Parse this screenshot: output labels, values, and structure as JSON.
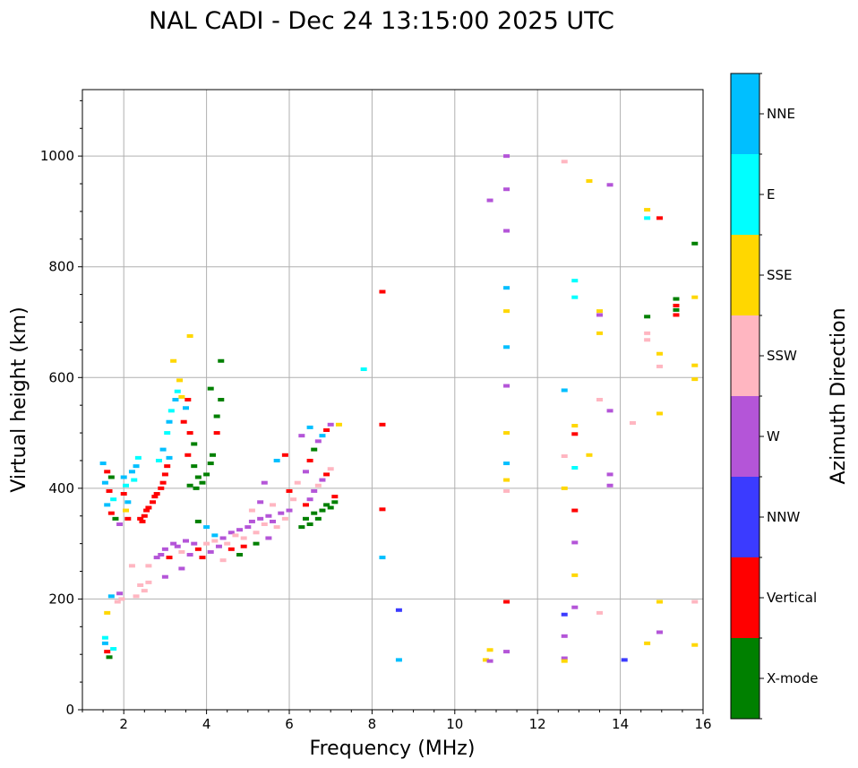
{
  "chart_data": {
    "type": "scatter",
    "title": "NAL CADI - Dec 24 13:15:00 2025 UTC",
    "xlabel": "Frequency (MHz)",
    "ylabel": "Virtual height (km)",
    "xlim": [
      1,
      16
    ],
    "ylim": [
      0,
      1120
    ],
    "xticks": [
      2,
      4,
      6,
      8,
      10,
      12,
      14,
      16
    ],
    "yticks": [
      0,
      200,
      400,
      600,
      800,
      1000
    ],
    "grid": true,
    "colorbar": {
      "label": "Azimuth Direction",
      "categories": [
        "X-mode",
        "Vertical",
        "NNW",
        "W",
        "SSW",
        "SSE",
        "E",
        "NNE"
      ],
      "colors": {
        "X-mode": "#008000",
        "Vertical": "#ff0000",
        "NNW": "#3b3bff",
        "W": "#b455d8",
        "SSW": "#ffb6c1",
        "SSE": "#ffd700",
        "E": "#00ffff",
        "NNE": "#00bfff"
      }
    },
    "points": [
      {
        "x": 1.55,
        "y": 120,
        "c": "NNE"
      },
      {
        "x": 1.55,
        "y": 130,
        "c": "E"
      },
      {
        "x": 1.6,
        "y": 105,
        "c": "Vertical"
      },
      {
        "x": 1.65,
        "y": 95,
        "c": "X-mode"
      },
      {
        "x": 1.75,
        "y": 110,
        "c": "E"
      },
      {
        "x": 1.6,
        "y": 175,
        "c": "SSE"
      },
      {
        "x": 1.7,
        "y": 205,
        "c": "NNE"
      },
      {
        "x": 1.85,
        "y": 195,
        "c": "SSW"
      },
      {
        "x": 1.9,
        "y": 210,
        "c": "W"
      },
      {
        "x": 1.95,
        "y": 200,
        "c": "SSW"
      },
      {
        "x": 1.5,
        "y": 445,
        "c": "NNE"
      },
      {
        "x": 1.6,
        "y": 430,
        "c": "Vertical"
      },
      {
        "x": 1.7,
        "y": 420,
        "c": "X-mode"
      },
      {
        "x": 1.55,
        "y": 410,
        "c": "NNE"
      },
      {
        "x": 1.65,
        "y": 395,
        "c": "Vertical"
      },
      {
        "x": 1.75,
        "y": 380,
        "c": "E"
      },
      {
        "x": 1.6,
        "y": 370,
        "c": "NNE"
      },
      {
        "x": 1.7,
        "y": 355,
        "c": "Vertical"
      },
      {
        "x": 1.8,
        "y": 345,
        "c": "X-mode"
      },
      {
        "x": 1.9,
        "y": 335,
        "c": "W"
      },
      {
        "x": 2.0,
        "y": 420,
        "c": "NNE"
      },
      {
        "x": 2.05,
        "y": 405,
        "c": "E"
      },
      {
        "x": 2.0,
        "y": 390,
        "c": "Vertical"
      },
      {
        "x": 2.1,
        "y": 375,
        "c": "NNE"
      },
      {
        "x": 2.05,
        "y": 360,
        "c": "SSE"
      },
      {
        "x": 2.1,
        "y": 345,
        "c": "Vertical"
      },
      {
        "x": 2.2,
        "y": 430,
        "c": "NNE"
      },
      {
        "x": 2.25,
        "y": 415,
        "c": "E"
      },
      {
        "x": 2.3,
        "y": 440,
        "c": "NNE"
      },
      {
        "x": 2.35,
        "y": 455,
        "c": "E"
      },
      {
        "x": 2.4,
        "y": 345,
        "c": "Vertical"
      },
      {
        "x": 2.45,
        "y": 340,
        "c": "Vertical"
      },
      {
        "x": 2.5,
        "y": 350,
        "c": "Vertical"
      },
      {
        "x": 2.55,
        "y": 360,
        "c": "Vertical"
      },
      {
        "x": 2.6,
        "y": 365,
        "c": "Vertical"
      },
      {
        "x": 2.7,
        "y": 375,
        "c": "Vertical"
      },
      {
        "x": 2.75,
        "y": 385,
        "c": "Vertical"
      },
      {
        "x": 2.8,
        "y": 390,
        "c": "Vertical"
      },
      {
        "x": 2.9,
        "y": 400,
        "c": "Vertical"
      },
      {
        "x": 2.95,
        "y": 410,
        "c": "Vertical"
      },
      {
        "x": 3.0,
        "y": 425,
        "c": "Vertical"
      },
      {
        "x": 3.05,
        "y": 440,
        "c": "Vertical"
      },
      {
        "x": 3.1,
        "y": 455,
        "c": "NNE"
      },
      {
        "x": 2.85,
        "y": 450,
        "c": "E"
      },
      {
        "x": 2.95,
        "y": 470,
        "c": "NNE"
      },
      {
        "x": 3.05,
        "y": 500,
        "c": "E"
      },
      {
        "x": 3.1,
        "y": 520,
        "c": "NNE"
      },
      {
        "x": 3.15,
        "y": 540,
        "c": "E"
      },
      {
        "x": 3.25,
        "y": 560,
        "c": "NNE"
      },
      {
        "x": 3.3,
        "y": 575,
        "c": "E"
      },
      {
        "x": 3.4,
        "y": 565,
        "c": "SSE"
      },
      {
        "x": 3.5,
        "y": 545,
        "c": "NNE"
      },
      {
        "x": 3.55,
        "y": 560,
        "c": "Vertical"
      },
      {
        "x": 3.35,
        "y": 595,
        "c": "SSE"
      },
      {
        "x": 3.2,
        "y": 630,
        "c": "SSE"
      },
      {
        "x": 3.6,
        "y": 675,
        "c": "SSE"
      },
      {
        "x": 3.45,
        "y": 520,
        "c": "Vertical"
      },
      {
        "x": 3.6,
        "y": 500,
        "c": "Vertical"
      },
      {
        "x": 3.7,
        "y": 480,
        "c": "X-mode"
      },
      {
        "x": 3.55,
        "y": 460,
        "c": "Vertical"
      },
      {
        "x": 3.7,
        "y": 440,
        "c": "X-mode"
      },
      {
        "x": 3.8,
        "y": 420,
        "c": "X-mode"
      },
      {
        "x": 3.9,
        "y": 410,
        "c": "X-mode"
      },
      {
        "x": 4.0,
        "y": 425,
        "c": "X-mode"
      },
      {
        "x": 4.1,
        "y": 445,
        "c": "X-mode"
      },
      {
        "x": 4.15,
        "y": 460,
        "c": "X-mode"
      },
      {
        "x": 4.25,
        "y": 500,
        "c": "Vertical"
      },
      {
        "x": 4.25,
        "y": 530,
        "c": "X-mode"
      },
      {
        "x": 4.35,
        "y": 560,
        "c": "X-mode"
      },
      {
        "x": 4.35,
        "y": 630,
        "c": "X-mode"
      },
      {
        "x": 4.1,
        "y": 580,
        "c": "X-mode"
      },
      {
        "x": 3.6,
        "y": 405,
        "c": "X-mode"
      },
      {
        "x": 3.75,
        "y": 400,
        "c": "X-mode"
      },
      {
        "x": 2.4,
        "y": 225,
        "c": "SSW"
      },
      {
        "x": 2.5,
        "y": 215,
        "c": "SSW"
      },
      {
        "x": 2.6,
        "y": 230,
        "c": "SSW"
      },
      {
        "x": 2.3,
        "y": 205,
        "c": "SSW"
      },
      {
        "x": 2.2,
        "y": 260,
        "c": "SSW"
      },
      {
        "x": 2.6,
        "y": 260,
        "c": "SSW"
      },
      {
        "x": 2.8,
        "y": 275,
        "c": "W"
      },
      {
        "x": 2.9,
        "y": 280,
        "c": "W"
      },
      {
        "x": 3.0,
        "y": 290,
        "c": "W"
      },
      {
        "x": 3.1,
        "y": 275,
        "c": "Vertical"
      },
      {
        "x": 3.2,
        "y": 300,
        "c": "W"
      },
      {
        "x": 3.3,
        "y": 295,
        "c": "W"
      },
      {
        "x": 3.4,
        "y": 285,
        "c": "SSW"
      },
      {
        "x": 3.5,
        "y": 305,
        "c": "W"
      },
      {
        "x": 3.6,
        "y": 280,
        "c": "W"
      },
      {
        "x": 3.7,
        "y": 300,
        "c": "W"
      },
      {
        "x": 3.8,
        "y": 290,
        "c": "Vertical"
      },
      {
        "x": 3.9,
        "y": 275,
        "c": "Vertical"
      },
      {
        "x": 4.0,
        "y": 300,
        "c": "SSW"
      },
      {
        "x": 4.1,
        "y": 285,
        "c": "W"
      },
      {
        "x": 4.2,
        "y": 305,
        "c": "SSW"
      },
      {
        "x": 4.3,
        "y": 295,
        "c": "W"
      },
      {
        "x": 4.4,
        "y": 310,
        "c": "W"
      },
      {
        "x": 4.5,
        "y": 300,
        "c": "SSW"
      },
      {
        "x": 4.6,
        "y": 320,
        "c": "W"
      },
      {
        "x": 4.7,
        "y": 315,
        "c": "SSW"
      },
      {
        "x": 4.8,
        "y": 325,
        "c": "W"
      },
      {
        "x": 4.9,
        "y": 310,
        "c": "SSW"
      },
      {
        "x": 5.0,
        "y": 330,
        "c": "W"
      },
      {
        "x": 5.1,
        "y": 340,
        "c": "W"
      },
      {
        "x": 5.2,
        "y": 320,
        "c": "SSW"
      },
      {
        "x": 5.3,
        "y": 345,
        "c": "W"
      },
      {
        "x": 5.4,
        "y": 335,
        "c": "SSW"
      },
      {
        "x": 5.5,
        "y": 350,
        "c": "W"
      },
      {
        "x": 5.6,
        "y": 340,
        "c": "W"
      },
      {
        "x": 5.7,
        "y": 330,
        "c": "SSW"
      },
      {
        "x": 5.8,
        "y": 355,
        "c": "W"
      },
      {
        "x": 5.9,
        "y": 345,
        "c": "SSW"
      },
      {
        "x": 6.0,
        "y": 360,
        "c": "W"
      },
      {
        "x": 4.6,
        "y": 290,
        "c": "Vertical"
      },
      {
        "x": 4.9,
        "y": 295,
        "c": "Vertical"
      },
      {
        "x": 5.2,
        "y": 300,
        "c": "X-mode"
      },
      {
        "x": 5.5,
        "y": 310,
        "c": "W"
      },
      {
        "x": 4.4,
        "y": 270,
        "c": "SSW"
      },
      {
        "x": 4.8,
        "y": 280,
        "c": "X-mode"
      },
      {
        "x": 5.3,
        "y": 375,
        "c": "W"
      },
      {
        "x": 5.6,
        "y": 370,
        "c": "SSW"
      },
      {
        "x": 5.1,
        "y": 360,
        "c": "SSW"
      },
      {
        "x": 5.4,
        "y": 410,
        "c": "W"
      },
      {
        "x": 4.2,
        "y": 315,
        "c": "NNE"
      },
      {
        "x": 4.0,
        "y": 330,
        "c": "NNE"
      },
      {
        "x": 3.8,
        "y": 340,
        "c": "X-mode"
      },
      {
        "x": 3.4,
        "y": 255,
        "c": "W"
      },
      {
        "x": 3.0,
        "y": 240,
        "c": "W"
      },
      {
        "x": 6.3,
        "y": 330,
        "c": "X-mode"
      },
      {
        "x": 6.4,
        "y": 345,
        "c": "X-mode"
      },
      {
        "x": 6.5,
        "y": 335,
        "c": "X-mode"
      },
      {
        "x": 6.6,
        "y": 355,
        "c": "X-mode"
      },
      {
        "x": 6.7,
        "y": 345,
        "c": "X-mode"
      },
      {
        "x": 6.8,
        "y": 360,
        "c": "X-mode"
      },
      {
        "x": 6.9,
        "y": 370,
        "c": "X-mode"
      },
      {
        "x": 7.0,
        "y": 365,
        "c": "X-mode"
      },
      {
        "x": 7.1,
        "y": 375,
        "c": "X-mode"
      },
      {
        "x": 6.4,
        "y": 370,
        "c": "Vertical"
      },
      {
        "x": 6.5,
        "y": 380,
        "c": "W"
      },
      {
        "x": 6.6,
        "y": 395,
        "c": "W"
      },
      {
        "x": 6.7,
        "y": 405,
        "c": "SSW"
      },
      {
        "x": 6.8,
        "y": 415,
        "c": "W"
      },
      {
        "x": 6.9,
        "y": 425,
        "c": "Vertical"
      },
      {
        "x": 7.0,
        "y": 435,
        "c": "SSW"
      },
      {
        "x": 6.4,
        "y": 430,
        "c": "W"
      },
      {
        "x": 6.5,
        "y": 450,
        "c": "Vertical"
      },
      {
        "x": 6.6,
        "y": 470,
        "c": "X-mode"
      },
      {
        "x": 6.7,
        "y": 485,
        "c": "W"
      },
      {
        "x": 6.8,
        "y": 495,
        "c": "NNE"
      },
      {
        "x": 6.9,
        "y": 505,
        "c": "Vertical"
      },
      {
        "x": 7.0,
        "y": 515,
        "c": "W"
      },
      {
        "x": 6.5,
        "y": 510,
        "c": "NNE"
      },
      {
        "x": 6.3,
        "y": 495,
        "c": "W"
      },
      {
        "x": 7.1,
        "y": 385,
        "c": "Vertical"
      },
      {
        "x": 6.2,
        "y": 410,
        "c": "SSW"
      },
      {
        "x": 6.1,
        "y": 380,
        "c": "SSW"
      },
      {
        "x": 7.2,
        "y": 515,
        "c": "SSE"
      },
      {
        "x": 6.0,
        "y": 395,
        "c": "Vertical"
      },
      {
        "x": 5.7,
        "y": 450,
        "c": "NNE"
      },
      {
        "x": 5.9,
        "y": 460,
        "c": "Vertical"
      },
      {
        "x": 7.8,
        "y": 615,
        "c": "E"
      },
      {
        "x": 8.25,
        "y": 755,
        "c": "Vertical"
      },
      {
        "x": 8.25,
        "y": 515,
        "c": "Vertical"
      },
      {
        "x": 8.25,
        "y": 362,
        "c": "Vertical"
      },
      {
        "x": 8.25,
        "y": 275,
        "c": "NNE"
      },
      {
        "x": 8.65,
        "y": 180,
        "c": "NNW"
      },
      {
        "x": 8.65,
        "y": 90,
        "c": "NNE"
      },
      {
        "x": 10.75,
        "y": 90,
        "c": "SSE"
      },
      {
        "x": 10.85,
        "y": 108,
        "c": "SSE"
      },
      {
        "x": 10.85,
        "y": 920,
        "c": "W"
      },
      {
        "x": 10.85,
        "y": 88,
        "c": "W"
      },
      {
        "x": 11.25,
        "y": 1000,
        "c": "W"
      },
      {
        "x": 11.25,
        "y": 940,
        "c": "W"
      },
      {
        "x": 11.25,
        "y": 865,
        "c": "W"
      },
      {
        "x": 11.25,
        "y": 762,
        "c": "NNE"
      },
      {
        "x": 11.25,
        "y": 720,
        "c": "SSE"
      },
      {
        "x": 11.25,
        "y": 655,
        "c": "NNE"
      },
      {
        "x": 11.25,
        "y": 585,
        "c": "W"
      },
      {
        "x": 11.25,
        "y": 500,
        "c": "SSE"
      },
      {
        "x": 11.25,
        "y": 445,
        "c": "NNE"
      },
      {
        "x": 11.25,
        "y": 415,
        "c": "SSE"
      },
      {
        "x": 11.25,
        "y": 395,
        "c": "SSW"
      },
      {
        "x": 11.25,
        "y": 195,
        "c": "Vertical"
      },
      {
        "x": 11.25,
        "y": 105,
        "c": "W"
      },
      {
        "x": 12.65,
        "y": 990,
        "c": "SSW"
      },
      {
        "x": 12.65,
        "y": 577,
        "c": "NNE"
      },
      {
        "x": 12.65,
        "y": 458,
        "c": "SSW"
      },
      {
        "x": 12.65,
        "y": 400,
        "c": "SSE"
      },
      {
        "x": 12.65,
        "y": 172,
        "c": "NNW"
      },
      {
        "x": 12.65,
        "y": 133,
        "c": "W"
      },
      {
        "x": 12.65,
        "y": 93,
        "c": "W"
      },
      {
        "x": 12.65,
        "y": 88,
        "c": "SSE"
      },
      {
        "x": 12.9,
        "y": 775,
        "c": "E"
      },
      {
        "x": 12.9,
        "y": 745,
        "c": "E"
      },
      {
        "x": 12.9,
        "y": 513,
        "c": "SSE"
      },
      {
        "x": 12.9,
        "y": 498,
        "c": "Vertical"
      },
      {
        "x": 12.9,
        "y": 437,
        "c": "E"
      },
      {
        "x": 12.9,
        "y": 360,
        "c": "Vertical"
      },
      {
        "x": 12.9,
        "y": 302,
        "c": "W"
      },
      {
        "x": 12.9,
        "y": 243,
        "c": "SSE"
      },
      {
        "x": 12.9,
        "y": 185,
        "c": "W"
      },
      {
        "x": 13.25,
        "y": 955,
        "c": "SSE"
      },
      {
        "x": 13.25,
        "y": 460,
        "c": "SSE"
      },
      {
        "x": 13.5,
        "y": 720,
        "c": "SSE"
      },
      {
        "x": 13.5,
        "y": 713,
        "c": "W"
      },
      {
        "x": 13.5,
        "y": 680,
        "c": "SSE"
      },
      {
        "x": 13.5,
        "y": 560,
        "c": "SSW"
      },
      {
        "x": 13.5,
        "y": 175,
        "c": "SSW"
      },
      {
        "x": 13.75,
        "y": 948,
        "c": "W"
      },
      {
        "x": 13.75,
        "y": 540,
        "c": "W"
      },
      {
        "x": 13.75,
        "y": 425,
        "c": "W"
      },
      {
        "x": 13.75,
        "y": 405,
        "c": "W"
      },
      {
        "x": 14.1,
        "y": 90,
        "c": "NNW"
      },
      {
        "x": 14.3,
        "y": 518,
        "c": "SSW"
      },
      {
        "x": 14.65,
        "y": 903,
        "c": "SSE"
      },
      {
        "x": 14.65,
        "y": 888,
        "c": "E"
      },
      {
        "x": 14.65,
        "y": 710,
        "c": "X-mode"
      },
      {
        "x": 14.65,
        "y": 680,
        "c": "SSW"
      },
      {
        "x": 14.65,
        "y": 668,
        "c": "SSW"
      },
      {
        "x": 14.65,
        "y": 120,
        "c": "SSE"
      },
      {
        "x": 14.95,
        "y": 888,
        "c": "Vertical"
      },
      {
        "x": 14.95,
        "y": 643,
        "c": "SSE"
      },
      {
        "x": 14.95,
        "y": 620,
        "c": "SSW"
      },
      {
        "x": 14.95,
        "y": 535,
        "c": "SSE"
      },
      {
        "x": 14.95,
        "y": 195,
        "c": "SSE"
      },
      {
        "x": 14.95,
        "y": 140,
        "c": "W"
      },
      {
        "x": 15.35,
        "y": 742,
        "c": "X-mode"
      },
      {
        "x": 15.35,
        "y": 730,
        "c": "Vertical"
      },
      {
        "x": 15.35,
        "y": 722,
        "c": "X-mode"
      },
      {
        "x": 15.35,
        "y": 713,
        "c": "Vertical"
      },
      {
        "x": 15.8,
        "y": 842,
        "c": "X-mode"
      },
      {
        "x": 15.8,
        "y": 745,
        "c": "SSE"
      },
      {
        "x": 15.8,
        "y": 622,
        "c": "SSE"
      },
      {
        "x": 15.8,
        "y": 597,
        "c": "SSE"
      },
      {
        "x": 15.8,
        "y": 195,
        "c": "SSW"
      },
      {
        "x": 15.8,
        "y": 117,
        "c": "SSE"
      }
    ]
  }
}
